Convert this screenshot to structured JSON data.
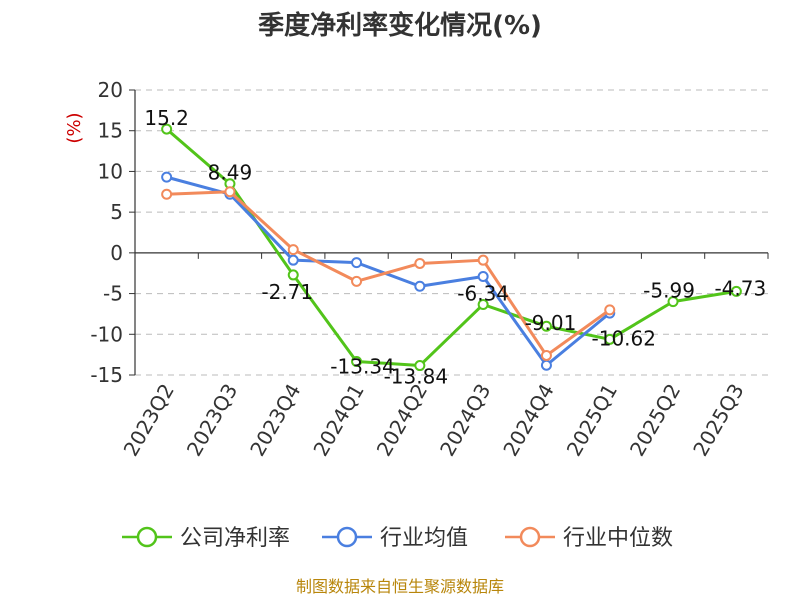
{
  "chart_data": {
    "type": "line",
    "title": "季度净利率变化情况(%)",
    "ylabel": "(%)",
    "categories": [
      "2023Q2",
      "2023Q3",
      "2023Q4",
      "2024Q1",
      "2024Q2",
      "2024Q3",
      "2024Q4",
      "2025Q1",
      "2025Q2",
      "2025Q3"
    ],
    "ylim": [
      -15,
      20
    ],
    "yticks": [
      20,
      15,
      10,
      5,
      0,
      -5,
      -10,
      -15
    ],
    "grid": true,
    "legend_position": "bottom",
    "series": [
      {
        "name": "公司净利率",
        "color": "#52c41a",
        "values": [
          15.2,
          8.49,
          -2.71,
          -13.34,
          -13.84,
          -6.34,
          -9.01,
          -10.62,
          -5.99,
          -4.73
        ],
        "labels": [
          "15.2",
          "8.49",
          "-2.71",
          "-13.34",
          "-13.84",
          "-6.34",
          "-9.01",
          "-10.62",
          "-5.99",
          "-4.73"
        ]
      },
      {
        "name": "行业均值",
        "color": "#4a7fe0",
        "values": [
          9.3,
          7.2,
          -0.9,
          -1.2,
          -4.1,
          -2.9,
          -13.8,
          -7.4,
          null,
          null
        ]
      },
      {
        "name": "行业中位数",
        "color": "#f28a5b",
        "values": [
          7.2,
          7.5,
          0.4,
          -3.5,
          -1.3,
          -0.9,
          -12.6,
          -7.0,
          null,
          null
        ]
      }
    ]
  },
  "footer": "制图数据来自恒生聚源数据库"
}
